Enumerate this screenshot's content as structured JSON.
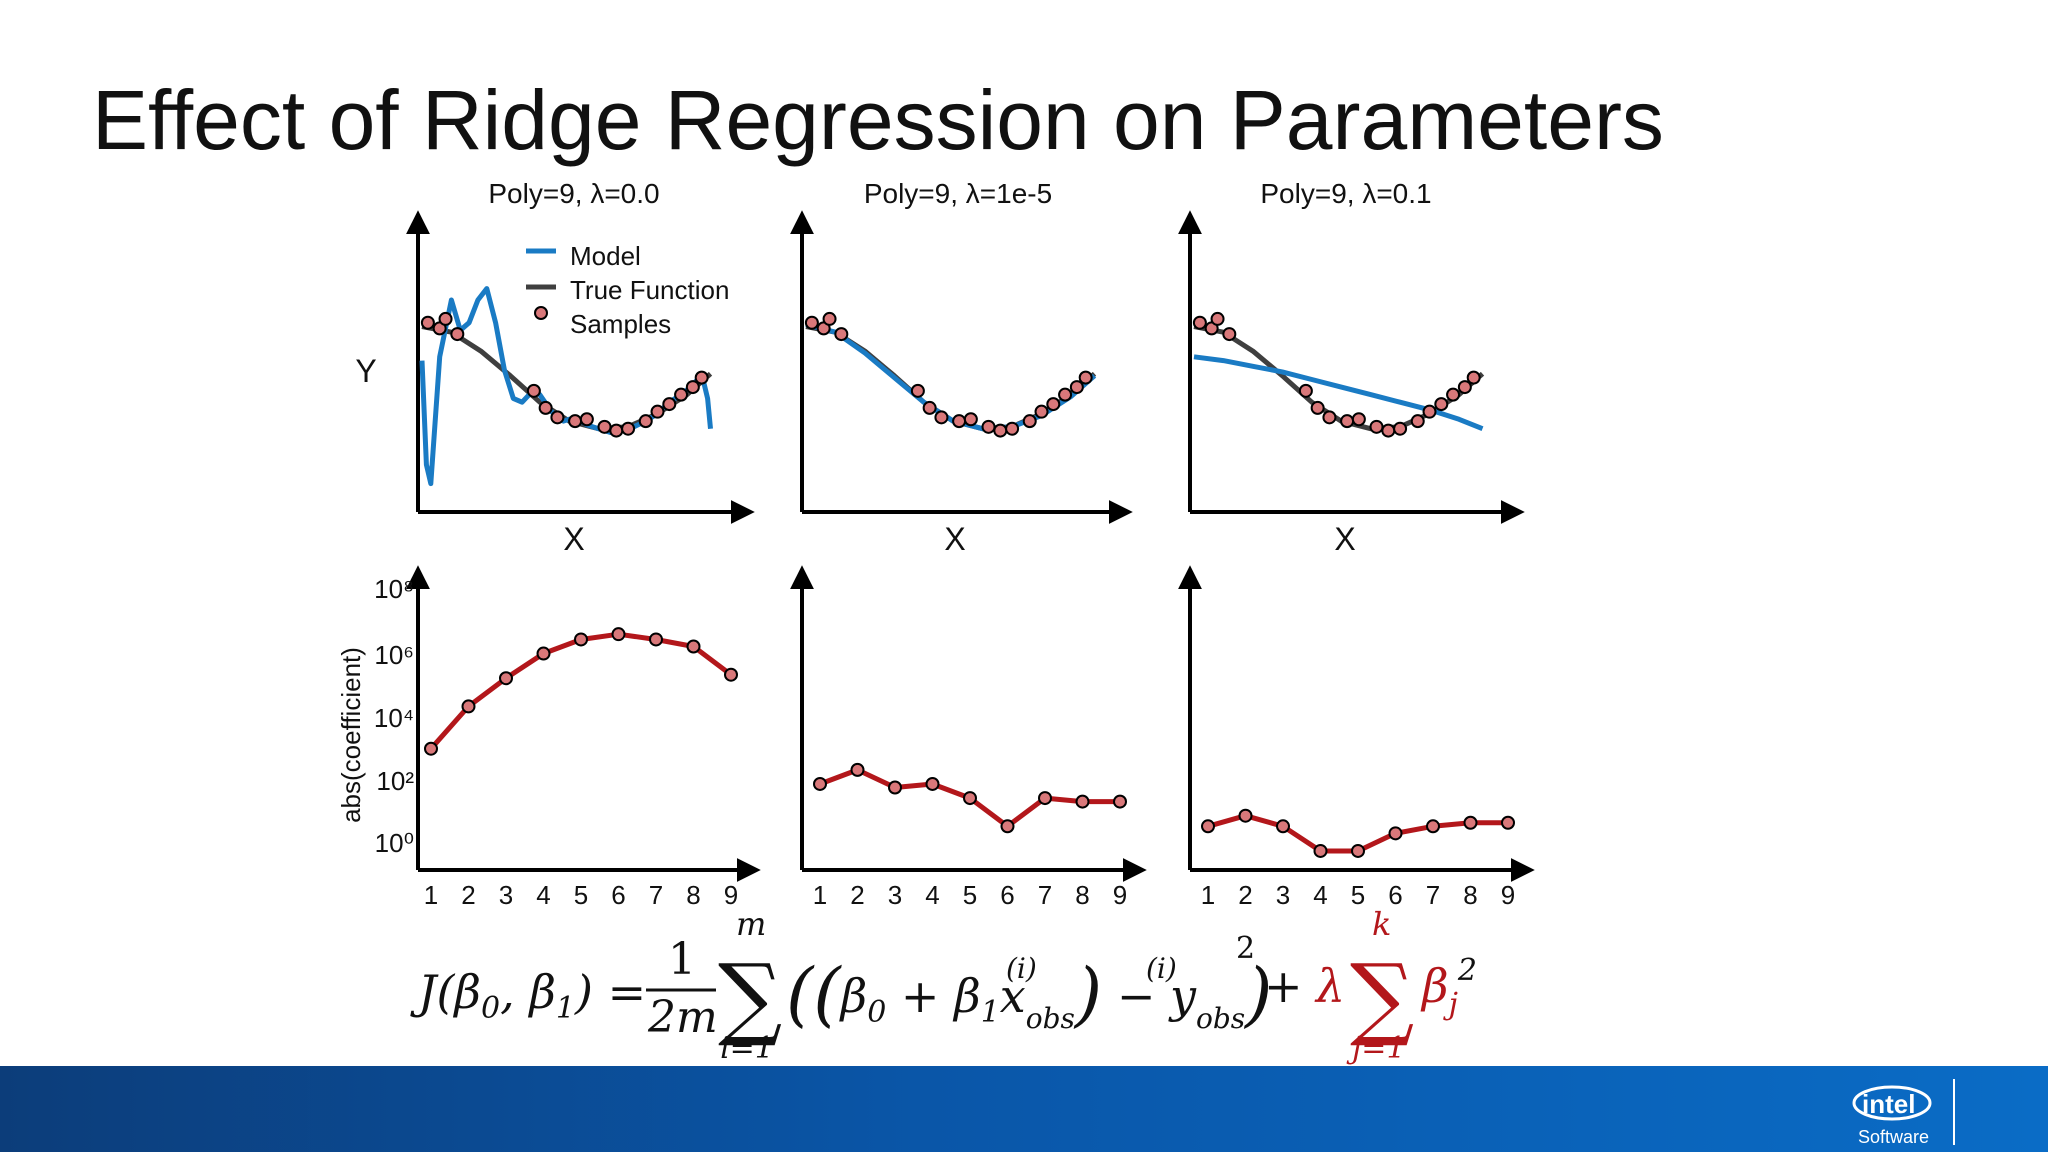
{
  "slide": {
    "title": "Effect of Ridge Regression on Parameters"
  },
  "legend": {
    "items": [
      "Model",
      "True Function",
      "Samples"
    ]
  },
  "colors": {
    "model": "#1a7bc4",
    "true_function": "#3f3f3f",
    "sample_fill": "#d9787a",
    "coef_line": "#b3171b",
    "footer": "#0a56a8"
  },
  "footer": {
    "logo_text": "intel",
    "logo_sub": "Software"
  },
  "formula": {
    "lhs": "J(β₀, β₁) =",
    "numerator": "1",
    "denominator": "2m",
    "sum1_upper": "m",
    "sum1_lower": "i=1",
    "body": "((β₀ + β₁x_obs⁽ⁱ⁾) − y_obs⁽ⁱ⁾)²",
    "plus": "+",
    "penalty": "λ Σ βⱼ²",
    "sum2_upper": "k",
    "sum2_lower": "j=1"
  },
  "chart_data": [
    {
      "type": "line+scatter",
      "title": "Poly=9, λ=0.0",
      "xlabel": "X",
      "ylabel": "Y",
      "xlim": [
        0,
        1
      ],
      "ylim": [
        -0.2,
        1.2
      ],
      "samples": [
        [
          0.02,
          0.8
        ],
        [
          0.06,
          0.77
        ],
        [
          0.08,
          0.82
        ],
        [
          0.12,
          0.74
        ],
        [
          0.38,
          0.44
        ],
        [
          0.42,
          0.35
        ],
        [
          0.46,
          0.3
        ],
        [
          0.52,
          0.28
        ],
        [
          0.56,
          0.29
        ],
        [
          0.62,
          0.25
        ],
        [
          0.66,
          0.23
        ],
        [
          0.7,
          0.24
        ],
        [
          0.76,
          0.28
        ],
        [
          0.8,
          0.33
        ],
        [
          0.84,
          0.37
        ],
        [
          0.88,
          0.42
        ],
        [
          0.92,
          0.46
        ],
        [
          0.95,
          0.51
        ]
      ],
      "true_function": [
        [
          0.0,
          0.78
        ],
        [
          0.1,
          0.75
        ],
        [
          0.2,
          0.65
        ],
        [
          0.3,
          0.52
        ],
        [
          0.4,
          0.38
        ],
        [
          0.5,
          0.28
        ],
        [
          0.6,
          0.24
        ],
        [
          0.7,
          0.25
        ],
        [
          0.8,
          0.32
        ],
        [
          0.9,
          0.42
        ],
        [
          0.98,
          0.53
        ]
      ],
      "model": [
        [
          0.0,
          0.6
        ],
        [
          0.015,
          0.05
        ],
        [
          0.03,
          -0.05
        ],
        [
          0.06,
          0.62
        ],
        [
          0.1,
          0.92
        ],
        [
          0.13,
          0.76
        ],
        [
          0.16,
          0.8
        ],
        [
          0.19,
          0.92
        ],
        [
          0.22,
          0.98
        ],
        [
          0.25,
          0.8
        ],
        [
          0.28,
          0.55
        ],
        [
          0.31,
          0.4
        ],
        [
          0.34,
          0.38
        ],
        [
          0.37,
          0.43
        ],
        [
          0.4,
          0.42
        ],
        [
          0.44,
          0.33
        ],
        [
          0.48,
          0.28
        ],
        [
          0.52,
          0.3
        ],
        [
          0.56,
          0.26
        ],
        [
          0.6,
          0.24
        ],
        [
          0.64,
          0.22
        ],
        [
          0.68,
          0.24
        ],
        [
          0.72,
          0.25
        ],
        [
          0.76,
          0.28
        ],
        [
          0.8,
          0.32
        ],
        [
          0.84,
          0.38
        ],
        [
          0.88,
          0.42
        ],
        [
          0.92,
          0.47
        ],
        [
          0.95,
          0.53
        ],
        [
          0.97,
          0.4
        ],
        [
          0.98,
          0.24
        ]
      ]
    },
    {
      "type": "line+scatter",
      "title": "Poly=9, λ=1e-5",
      "xlabel": "X",
      "xlim": [
        0,
        1
      ],
      "ylim": [
        -0.2,
        1.2
      ],
      "samples": [
        [
          0.02,
          0.8
        ],
        [
          0.06,
          0.77
        ],
        [
          0.08,
          0.82
        ],
        [
          0.12,
          0.74
        ],
        [
          0.38,
          0.44
        ],
        [
          0.42,
          0.35
        ],
        [
          0.46,
          0.3
        ],
        [
          0.52,
          0.28
        ],
        [
          0.56,
          0.29
        ],
        [
          0.62,
          0.25
        ],
        [
          0.66,
          0.23
        ],
        [
          0.7,
          0.24
        ],
        [
          0.76,
          0.28
        ],
        [
          0.8,
          0.33
        ],
        [
          0.84,
          0.37
        ],
        [
          0.88,
          0.42
        ],
        [
          0.92,
          0.46
        ],
        [
          0.95,
          0.51
        ]
      ],
      "true_function": [
        [
          0.0,
          0.78
        ],
        [
          0.1,
          0.75
        ],
        [
          0.2,
          0.65
        ],
        [
          0.3,
          0.52
        ],
        [
          0.4,
          0.38
        ],
        [
          0.5,
          0.28
        ],
        [
          0.6,
          0.24
        ],
        [
          0.7,
          0.25
        ],
        [
          0.8,
          0.32
        ],
        [
          0.9,
          0.42
        ],
        [
          0.98,
          0.53
        ]
      ],
      "model": [
        [
          0.0,
          0.79
        ],
        [
          0.1,
          0.75
        ],
        [
          0.2,
          0.64
        ],
        [
          0.3,
          0.51
        ],
        [
          0.4,
          0.38
        ],
        [
          0.5,
          0.28
        ],
        [
          0.6,
          0.24
        ],
        [
          0.7,
          0.25
        ],
        [
          0.8,
          0.31
        ],
        [
          0.9,
          0.41
        ],
        [
          0.98,
          0.52
        ]
      ]
    },
    {
      "type": "line+scatter",
      "title": "Poly=9, λ=0.1",
      "xlabel": "X",
      "xlim": [
        0,
        1
      ],
      "ylim": [
        -0.2,
        1.2
      ],
      "samples": [
        [
          0.02,
          0.8
        ],
        [
          0.06,
          0.77
        ],
        [
          0.08,
          0.82
        ],
        [
          0.12,
          0.74
        ],
        [
          0.38,
          0.44
        ],
        [
          0.42,
          0.35
        ],
        [
          0.46,
          0.3
        ],
        [
          0.52,
          0.28
        ],
        [
          0.56,
          0.29
        ],
        [
          0.62,
          0.25
        ],
        [
          0.66,
          0.23
        ],
        [
          0.7,
          0.24
        ],
        [
          0.76,
          0.28
        ],
        [
          0.8,
          0.33
        ],
        [
          0.84,
          0.37
        ],
        [
          0.88,
          0.42
        ],
        [
          0.92,
          0.46
        ],
        [
          0.95,
          0.51
        ]
      ],
      "true_function": [
        [
          0.0,
          0.78
        ],
        [
          0.1,
          0.75
        ],
        [
          0.2,
          0.65
        ],
        [
          0.3,
          0.52
        ],
        [
          0.4,
          0.38
        ],
        [
          0.5,
          0.28
        ],
        [
          0.6,
          0.24
        ],
        [
          0.7,
          0.25
        ],
        [
          0.8,
          0.32
        ],
        [
          0.9,
          0.42
        ],
        [
          0.98,
          0.53
        ]
      ],
      "model": [
        [
          0.0,
          0.62
        ],
        [
          0.1,
          0.6
        ],
        [
          0.2,
          0.57
        ],
        [
          0.3,
          0.54
        ],
        [
          0.4,
          0.5
        ],
        [
          0.5,
          0.46
        ],
        [
          0.6,
          0.42
        ],
        [
          0.7,
          0.38
        ],
        [
          0.8,
          0.34
        ],
        [
          0.9,
          0.29
        ],
        [
          0.98,
          0.24
        ]
      ]
    },
    {
      "type": "line",
      "xlabel": "",
      "ylabel": "abs(coefficient)",
      "yscale": "log",
      "ylim": [
        0,
        8
      ],
      "categories": [
        1,
        2,
        3,
        4,
        5,
        6,
        7,
        8,
        9
      ],
      "yticks": [
        "10⁰",
        "10²",
        "10⁴",
        "10⁶",
        "10⁸"
      ],
      "log10_values": [
        3.1,
        4.3,
        5.1,
        5.8,
        6.2,
        6.35,
        6.2,
        6.0,
        5.2
      ]
    },
    {
      "type": "line",
      "yscale": "log",
      "ylim": [
        0,
        8
      ],
      "categories": [
        1,
        2,
        3,
        4,
        5,
        6,
        7,
        8,
        9
      ],
      "log10_values": [
        2.1,
        2.5,
        2.0,
        2.1,
        1.7,
        0.9,
        1.7,
        1.6,
        1.6
      ]
    },
    {
      "type": "line",
      "yscale": "log",
      "ylim": [
        0,
        8
      ],
      "categories": [
        1,
        2,
        3,
        4,
        5,
        6,
        7,
        8,
        9
      ],
      "log10_values": [
        0.9,
        1.2,
        0.9,
        0.2,
        0.2,
        0.7,
        0.9,
        1.0,
        1.0
      ]
    }
  ]
}
